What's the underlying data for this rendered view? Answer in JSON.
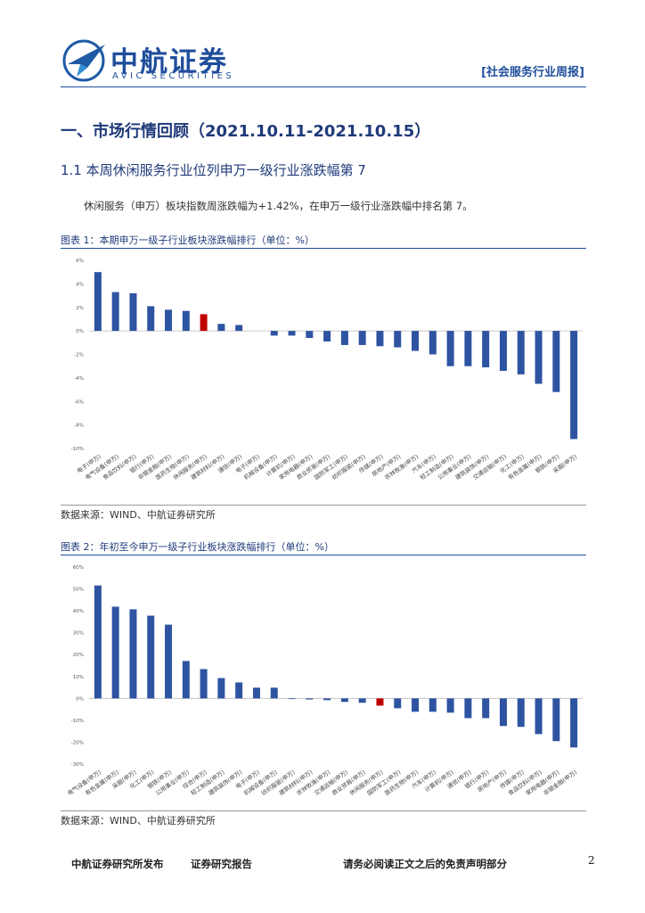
{
  "header": {
    "company": "中航证券",
    "company_en": "AVIC SECURITIES",
    "report_tag": "[社会服务行业周报]"
  },
  "section_title": "一、市场行情回顾（2021.10.11-2021.10.15）",
  "subsection_title": "1.1 本周休闲服务行业位列申万一级行业涨跌幅第 7",
  "paragraph": "休闲服务（申万）板块指数周涨跌幅为+1.42%，在申万一级行业涨跌幅中排名第 7。",
  "figures": [
    {
      "title": "图表 1：本期申万一级子行业板块涨跌幅排行（单位：%）",
      "source": "数据来源：WIND、中航证券研究所"
    },
    {
      "title": "图表 2：年初至今申万一级子行业板块涨跌幅排行（单位：%）",
      "source": "数据来源：WIND、中航证券研究所"
    }
  ],
  "chart_data": [
    {
      "type": "bar",
      "categories": [
        "电子(申万)",
        "电气设备(申万)",
        "食品饮料(申万)",
        "银行(申万)",
        "非银金融(申万)",
        "医药生物(申万)",
        "休闲服务(申万)",
        "建筑材料(申万)",
        "通信(申万)",
        "电子(申万)",
        "机械设备(申万)",
        "计算机(申万)",
        "家用电器(申万)",
        "商业贸易(申万)",
        "国防军工(申万)",
        "纺织服装(申万)",
        "传媒(申万)",
        "房地产(申万)",
        "农林牧渔(申万)",
        "汽车(申万)",
        "轻工制造(申万)",
        "公用事业(申万)",
        "建筑装饰(申万)",
        "交通运输(申万)",
        "化工(申万)",
        "有色金属(申万)",
        "钢铁(申万)",
        "采掘(申万)"
      ],
      "values": [
        5.0,
        3.3,
        3.2,
        2.1,
        1.8,
        1.7,
        1.42,
        0.6,
        0.5,
        0,
        -0.4,
        -0.4,
        -0.6,
        -0.9,
        -1.2,
        -1.2,
        -1.3,
        -1.4,
        -1.7,
        -2.0,
        -3.0,
        -3.0,
        -3.1,
        -3.4,
        -3.7,
        -4.5,
        -5.2,
        -9.2
      ],
      "colors": [
        "#2e54a1",
        "#2e54a1",
        "#2e54a1",
        "#2e54a1",
        "#2e54a1",
        "#2e54a1",
        "#c00000",
        "#2e54a1",
        "#2e54a1",
        "#2e54a1",
        "#2e54a1",
        "#2e54a1",
        "#2e54a1",
        "#2e54a1",
        "#2e54a1",
        "#2e54a1",
        "#2e54a1",
        "#2e54a1",
        "#2e54a1",
        "#2e54a1",
        "#2e54a1",
        "#2e54a1",
        "#2e54a1",
        "#2e54a1",
        "#2e54a1",
        "#2e54a1",
        "#2e54a1",
        "#2e54a1"
      ],
      "ylim": [
        -10,
        6
      ],
      "yticks": [
        {
          "value": 6,
          "label": "6%"
        },
        {
          "value": 4,
          "label": "4%"
        },
        {
          "value": 2,
          "label": "2%"
        },
        {
          "value": 0,
          "label": "0%"
        },
        {
          "value": -2,
          "label": "-2%"
        },
        {
          "value": -4,
          "label": "-4%"
        },
        {
          "value": -6,
          "label": "-6%"
        },
        {
          "value": -8,
          "label": "-8%"
        },
        {
          "value": -10,
          "label": "-10%"
        }
      ],
      "grid": false
    },
    {
      "type": "bar",
      "categories": [
        "电气设备(申万)",
        "有色金属(申万)",
        "采掘(申万)",
        "化工(申万)",
        "钢铁(申万)",
        "公用事业(申万)",
        "综合(申万)",
        "轻工制造(申万)",
        "建筑装饰(申万)",
        "电子(申万)",
        "机械设备(申万)",
        "纺织服装(申万)",
        "建筑材料(申万)",
        "农林牧渔(申万)",
        "交通运输(申万)",
        "商业贸易(申万)",
        "休闲服务(申万)",
        "国防军工(申万)",
        "医药生物(申万)",
        "汽车(申万)",
        "计算机(申万)",
        "通信(申万)",
        "银行(申万)",
        "房地产(申万)",
        "传媒(申万)",
        "食品饮料(申万)",
        "家用电器(申万)",
        "非银金融(申万)"
      ],
      "values": [
        51.6,
        41.9,
        40.7,
        37.8,
        33.7,
        17.1,
        13.4,
        9.3,
        7.3,
        4.9,
        4.9,
        -0.3,
        -0.5,
        -0.8,
        -1.6,
        -2.0,
        -3.3,
        -4.5,
        -6.1,
        -6.1,
        -6.5,
        -9.0,
        -9.0,
        -12.6,
        -13.0,
        -16.3,
        -19.5,
        -22.4
      ],
      "colors": [
        "#2e54a1",
        "#2e54a1",
        "#2e54a1",
        "#2e54a1",
        "#2e54a1",
        "#2e54a1",
        "#2e54a1",
        "#2e54a1",
        "#2e54a1",
        "#2e54a1",
        "#2e54a1",
        "#2e54a1",
        "#2e54a1",
        "#2e54a1",
        "#2e54a1",
        "#2e54a1",
        "#c00000",
        "#2e54a1",
        "#2e54a1",
        "#2e54a1",
        "#2e54a1",
        "#2e54a1",
        "#2e54a1",
        "#2e54a1",
        "#2e54a1",
        "#2e54a1",
        "#2e54a1",
        "#2e54a1"
      ],
      "ylim": [
        -30,
        60
      ],
      "yticks": [
        {
          "value": 60,
          "label": "60%"
        },
        {
          "value": 50,
          "label": "50%"
        },
        {
          "value": 40,
          "label": "40%"
        },
        {
          "value": 30,
          "label": "30%"
        },
        {
          "value": 20,
          "label": "20%"
        },
        {
          "value": 10,
          "label": "10%"
        },
        {
          "value": 0,
          "label": "0%"
        },
        {
          "value": -10,
          "label": "-10%"
        },
        {
          "value": -20,
          "label": "-20%"
        },
        {
          "value": -30,
          "label": "-30%"
        }
      ],
      "grid": false
    }
  ],
  "footer": {
    "publisher": "中航证券研究所发布",
    "type": "证券研究报告",
    "disclaimer": "请务必阅读正文之后的免责声明部分",
    "page": "2"
  }
}
